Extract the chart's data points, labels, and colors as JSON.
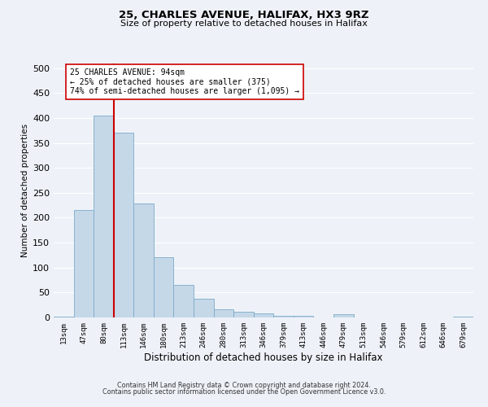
{
  "title1": "25, CHARLES AVENUE, HALIFAX, HX3 9RZ",
  "title2": "Size of property relative to detached houses in Halifax",
  "xlabel": "Distribution of detached houses by size in Halifax",
  "ylabel": "Number of detached properties",
  "categories": [
    "13sqm",
    "47sqm",
    "80sqm",
    "113sqm",
    "146sqm",
    "180sqm",
    "213sqm",
    "246sqm",
    "280sqm",
    "313sqm",
    "346sqm",
    "379sqm",
    "413sqm",
    "446sqm",
    "479sqm",
    "513sqm",
    "546sqm",
    "579sqm",
    "612sqm",
    "646sqm",
    "679sqm"
  ],
  "values": [
    2,
    215,
    405,
    370,
    228,
    120,
    65,
    38,
    17,
    12,
    8,
    3,
    3,
    0,
    6,
    0,
    0,
    0,
    0,
    0,
    2
  ],
  "bar_color": "#c5d8e8",
  "bar_edge_color": "#7baac8",
  "vline_x_index": 2,
  "vline_color": "#cc0000",
  "annotation_text": "25 CHARLES AVENUE: 94sqm\n← 25% of detached houses are smaller (375)\n74% of semi-detached houses are larger (1,095) →",
  "annotation_box_color": "#ffffff",
  "annotation_box_edge": "#cc0000",
  "background_color": "#eef2f8",
  "plot_bg_color": "#eef2f8",
  "grid_color": "#ffffff",
  "footer1": "Contains HM Land Registry data © Crown copyright and database right 2024.",
  "footer2": "Contains public sector information licensed under the Open Government Licence v3.0.",
  "ylim": [
    0,
    510
  ],
  "yticks": [
    0,
    50,
    100,
    150,
    200,
    250,
    300,
    350,
    400,
    450,
    500
  ]
}
